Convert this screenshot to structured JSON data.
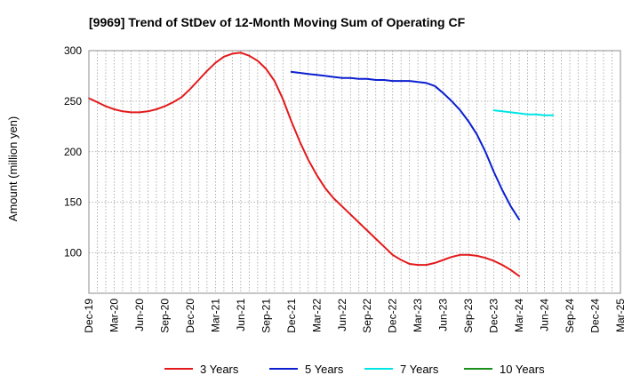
{
  "chart_data": {
    "type": "line",
    "title": "[9969]  Trend of StDev of 12-Month Moving Sum of Operating CF",
    "xlabel": "",
    "ylabel": "Amount (million yen)",
    "ylim": [
      60,
      300
    ],
    "yticks": [
      100,
      150,
      200,
      250,
      300
    ],
    "x_tick_labels": [
      "Dec-19",
      "Mar-20",
      "Jun-20",
      "Sep-20",
      "Dec-20",
      "Mar-21",
      "Jun-21",
      "Sep-21",
      "Dec-21",
      "Mar-22",
      "Jun-22",
      "Sep-22",
      "Dec-22",
      "Mar-23",
      "Jun-23",
      "Sep-23",
      "Dec-23",
      "Mar-24",
      "Jun-24",
      "Sep-24",
      "Dec-24",
      "Mar-25"
    ],
    "grid": true,
    "legend_position": "bottom",
    "series": [
      {
        "name": "3 Years",
        "color": "#e31a1c",
        "x": [
          "Dec-19",
          "Jan-20",
          "Feb-20",
          "Mar-20",
          "Apr-20",
          "May-20",
          "Jun-20",
          "Jul-20",
          "Aug-20",
          "Sep-20",
          "Oct-20",
          "Nov-20",
          "Dec-20",
          "Jan-21",
          "Feb-21",
          "Mar-21",
          "Apr-21",
          "May-21",
          "Jun-21",
          "Jul-21",
          "Aug-21",
          "Sep-21",
          "Oct-21",
          "Nov-21",
          "Dec-21",
          "Jan-22",
          "Feb-22",
          "Mar-22",
          "Apr-22",
          "May-22",
          "Jun-22",
          "Jul-22",
          "Aug-22",
          "Sep-22",
          "Oct-22",
          "Nov-22",
          "Dec-22",
          "Jan-23",
          "Feb-23",
          "Mar-23",
          "Apr-23",
          "May-23",
          "Jun-23",
          "Jul-23",
          "Aug-23",
          "Sep-23",
          "Oct-23",
          "Nov-23",
          "Dec-23",
          "Jan-24",
          "Feb-24",
          "Mar-24"
        ],
        "values": [
          253,
          249,
          245,
          242,
          240,
          239,
          239,
          240,
          242,
          245,
          249,
          254,
          262,
          271,
          280,
          288,
          294,
          297,
          298,
          295,
          290,
          282,
          270,
          252,
          230,
          210,
          192,
          177,
          164,
          154,
          146,
          138,
          130,
          122,
          114,
          106,
          98,
          93,
          89,
          88,
          88,
          90,
          93,
          96,
          98,
          98,
          97,
          95,
          92,
          88,
          83,
          77
        ]
      },
      {
        "name": "5 Years",
        "color": "#0b1fcf",
        "x": [
          "Dec-21",
          "Jan-22",
          "Feb-22",
          "Mar-22",
          "Apr-22",
          "May-22",
          "Jun-22",
          "Jul-22",
          "Aug-22",
          "Sep-22",
          "Oct-22",
          "Nov-22",
          "Dec-22",
          "Jan-23",
          "Feb-23",
          "Mar-23",
          "Apr-23",
          "May-23",
          "Jun-23",
          "Jul-23",
          "Aug-23",
          "Sep-23",
          "Oct-23",
          "Nov-23",
          "Dec-23",
          "Jan-24",
          "Feb-24",
          "Mar-24"
        ],
        "values": [
          279,
          278,
          277,
          276,
          275,
          274,
          273,
          273,
          272,
          272,
          271,
          271,
          270,
          270,
          270,
          269,
          268,
          265,
          258,
          250,
          241,
          230,
          217,
          200,
          180,
          162,
          146,
          133
        ]
      },
      {
        "name": "7 Years",
        "color": "#00e5e5",
        "x": [
          "Dec-23",
          "Jan-24",
          "Feb-24",
          "Mar-24",
          "Apr-24",
          "May-24",
          "Jun-24",
          "Jul-24"
        ],
        "values": [
          241,
          240,
          239,
          238,
          237,
          237,
          236,
          236
        ]
      },
      {
        "name": "10 Years",
        "color": "#1a8f1a",
        "x": [],
        "values": []
      }
    ]
  }
}
